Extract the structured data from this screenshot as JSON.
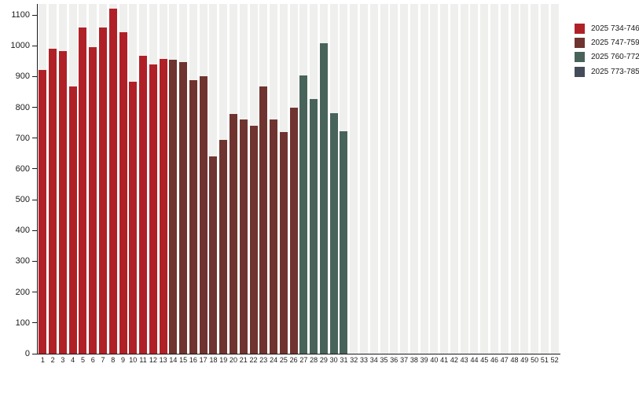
{
  "chart_data": {
    "type": "bar",
    "title": "",
    "xlabel": "",
    "ylabel": "",
    "x_categories": [
      "1",
      "2",
      "3",
      "4",
      "5",
      "6",
      "7",
      "8",
      "9",
      "10",
      "11",
      "12",
      "13",
      "14",
      "15",
      "16",
      "17",
      "18",
      "19",
      "20",
      "21",
      "22",
      "23",
      "24",
      "25",
      "26",
      "27",
      "28",
      "29",
      "30",
      "31",
      "32",
      "33",
      "34",
      "35",
      "36",
      "37",
      "38",
      "39",
      "40",
      "41",
      "42",
      "43",
      "44",
      "45",
      "46",
      "47",
      "48",
      "49",
      "50",
      "51",
      "52"
    ],
    "values": [
      921,
      991,
      983,
      867,
      1059,
      995,
      1059,
      1121,
      1045,
      883,
      968,
      939,
      958,
      954,
      947,
      888,
      902,
      640,
      694,
      778,
      760,
      741,
      868,
      762,
      719,
      799,
      904,
      828,
      1009,
      780,
      723,
      null,
      null,
      null,
      null,
      null,
      null,
      null,
      null,
      null,
      null,
      null,
      null,
      null,
      null,
      null,
      null,
      null,
      null,
      null,
      null,
      null
    ],
    "yticks": [
      0,
      100,
      200,
      300,
      400,
      500,
      600,
      700,
      800,
      900,
      1000,
      1100
    ],
    "ylim": [
      0,
      1136
    ],
    "grid": "striped-columns",
    "legend_position": "top-right",
    "legend": [
      {
        "label": "2025 734-746",
        "color": "#b02127",
        "week_range": [
          1,
          13
        ]
      },
      {
        "label": "2025 747-759",
        "color": "#6f342f",
        "week_range": [
          14,
          26
        ]
      },
      {
        "label": "2025 760-772",
        "color": "#48635a",
        "week_range": [
          27,
          39
        ]
      },
      {
        "label": "2025 773-785",
        "color": "#444c59",
        "week_range": [
          40,
          52
        ]
      }
    ],
    "colors": {
      "column_stripe": "#efefed",
      "axis": "#1a1a1a"
    }
  }
}
